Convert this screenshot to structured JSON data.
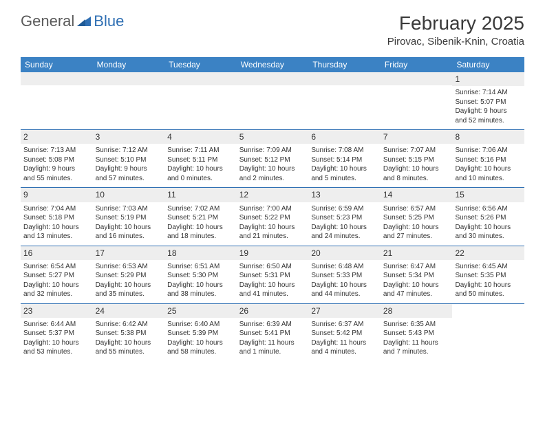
{
  "logo": {
    "part1": "General",
    "part2": "Blue"
  },
  "title": "February 2025",
  "location": "Pirovac, Sibenik-Knin, Croatia",
  "colors": {
    "header_bg": "#3b82c4",
    "header_text": "#ffffff",
    "border": "#2f6fb3",
    "daynum_bg": "#eeeeee",
    "text": "#333333",
    "logo_gray": "#5a5a5a",
    "logo_blue": "#2f6fb3"
  },
  "weekdays": [
    "Sunday",
    "Monday",
    "Tuesday",
    "Wednesday",
    "Thursday",
    "Friday",
    "Saturday"
  ],
  "weeks": [
    [
      null,
      null,
      null,
      null,
      null,
      null,
      {
        "n": "1",
        "sr": "Sunrise: 7:14 AM",
        "ss": "Sunset: 5:07 PM",
        "dl1": "Daylight: 9 hours",
        "dl2": "and 52 minutes."
      }
    ],
    [
      {
        "n": "2",
        "sr": "Sunrise: 7:13 AM",
        "ss": "Sunset: 5:08 PM",
        "dl1": "Daylight: 9 hours",
        "dl2": "and 55 minutes."
      },
      {
        "n": "3",
        "sr": "Sunrise: 7:12 AM",
        "ss": "Sunset: 5:10 PM",
        "dl1": "Daylight: 9 hours",
        "dl2": "and 57 minutes."
      },
      {
        "n": "4",
        "sr": "Sunrise: 7:11 AM",
        "ss": "Sunset: 5:11 PM",
        "dl1": "Daylight: 10 hours",
        "dl2": "and 0 minutes."
      },
      {
        "n": "5",
        "sr": "Sunrise: 7:09 AM",
        "ss": "Sunset: 5:12 PM",
        "dl1": "Daylight: 10 hours",
        "dl2": "and 2 minutes."
      },
      {
        "n": "6",
        "sr": "Sunrise: 7:08 AM",
        "ss": "Sunset: 5:14 PM",
        "dl1": "Daylight: 10 hours",
        "dl2": "and 5 minutes."
      },
      {
        "n": "7",
        "sr": "Sunrise: 7:07 AM",
        "ss": "Sunset: 5:15 PM",
        "dl1": "Daylight: 10 hours",
        "dl2": "and 8 minutes."
      },
      {
        "n": "8",
        "sr": "Sunrise: 7:06 AM",
        "ss": "Sunset: 5:16 PM",
        "dl1": "Daylight: 10 hours",
        "dl2": "and 10 minutes."
      }
    ],
    [
      {
        "n": "9",
        "sr": "Sunrise: 7:04 AM",
        "ss": "Sunset: 5:18 PM",
        "dl1": "Daylight: 10 hours",
        "dl2": "and 13 minutes."
      },
      {
        "n": "10",
        "sr": "Sunrise: 7:03 AM",
        "ss": "Sunset: 5:19 PM",
        "dl1": "Daylight: 10 hours",
        "dl2": "and 16 minutes."
      },
      {
        "n": "11",
        "sr": "Sunrise: 7:02 AM",
        "ss": "Sunset: 5:21 PM",
        "dl1": "Daylight: 10 hours",
        "dl2": "and 18 minutes."
      },
      {
        "n": "12",
        "sr": "Sunrise: 7:00 AM",
        "ss": "Sunset: 5:22 PM",
        "dl1": "Daylight: 10 hours",
        "dl2": "and 21 minutes."
      },
      {
        "n": "13",
        "sr": "Sunrise: 6:59 AM",
        "ss": "Sunset: 5:23 PM",
        "dl1": "Daylight: 10 hours",
        "dl2": "and 24 minutes."
      },
      {
        "n": "14",
        "sr": "Sunrise: 6:57 AM",
        "ss": "Sunset: 5:25 PM",
        "dl1": "Daylight: 10 hours",
        "dl2": "and 27 minutes."
      },
      {
        "n": "15",
        "sr": "Sunrise: 6:56 AM",
        "ss": "Sunset: 5:26 PM",
        "dl1": "Daylight: 10 hours",
        "dl2": "and 30 minutes."
      }
    ],
    [
      {
        "n": "16",
        "sr": "Sunrise: 6:54 AM",
        "ss": "Sunset: 5:27 PM",
        "dl1": "Daylight: 10 hours",
        "dl2": "and 32 minutes."
      },
      {
        "n": "17",
        "sr": "Sunrise: 6:53 AM",
        "ss": "Sunset: 5:29 PM",
        "dl1": "Daylight: 10 hours",
        "dl2": "and 35 minutes."
      },
      {
        "n": "18",
        "sr": "Sunrise: 6:51 AM",
        "ss": "Sunset: 5:30 PM",
        "dl1": "Daylight: 10 hours",
        "dl2": "and 38 minutes."
      },
      {
        "n": "19",
        "sr": "Sunrise: 6:50 AM",
        "ss": "Sunset: 5:31 PM",
        "dl1": "Daylight: 10 hours",
        "dl2": "and 41 minutes."
      },
      {
        "n": "20",
        "sr": "Sunrise: 6:48 AM",
        "ss": "Sunset: 5:33 PM",
        "dl1": "Daylight: 10 hours",
        "dl2": "and 44 minutes."
      },
      {
        "n": "21",
        "sr": "Sunrise: 6:47 AM",
        "ss": "Sunset: 5:34 PM",
        "dl1": "Daylight: 10 hours",
        "dl2": "and 47 minutes."
      },
      {
        "n": "22",
        "sr": "Sunrise: 6:45 AM",
        "ss": "Sunset: 5:35 PM",
        "dl1": "Daylight: 10 hours",
        "dl2": "and 50 minutes."
      }
    ],
    [
      {
        "n": "23",
        "sr": "Sunrise: 6:44 AM",
        "ss": "Sunset: 5:37 PM",
        "dl1": "Daylight: 10 hours",
        "dl2": "and 53 minutes."
      },
      {
        "n": "24",
        "sr": "Sunrise: 6:42 AM",
        "ss": "Sunset: 5:38 PM",
        "dl1": "Daylight: 10 hours",
        "dl2": "and 55 minutes."
      },
      {
        "n": "25",
        "sr": "Sunrise: 6:40 AM",
        "ss": "Sunset: 5:39 PM",
        "dl1": "Daylight: 10 hours",
        "dl2": "and 58 minutes."
      },
      {
        "n": "26",
        "sr": "Sunrise: 6:39 AM",
        "ss": "Sunset: 5:41 PM",
        "dl1": "Daylight: 11 hours",
        "dl2": "and 1 minute."
      },
      {
        "n": "27",
        "sr": "Sunrise: 6:37 AM",
        "ss": "Sunset: 5:42 PM",
        "dl1": "Daylight: 11 hours",
        "dl2": "and 4 minutes."
      },
      {
        "n": "28",
        "sr": "Sunrise: 6:35 AM",
        "ss": "Sunset: 5:43 PM",
        "dl1": "Daylight: 11 hours",
        "dl2": "and 7 minutes."
      },
      null
    ]
  ]
}
